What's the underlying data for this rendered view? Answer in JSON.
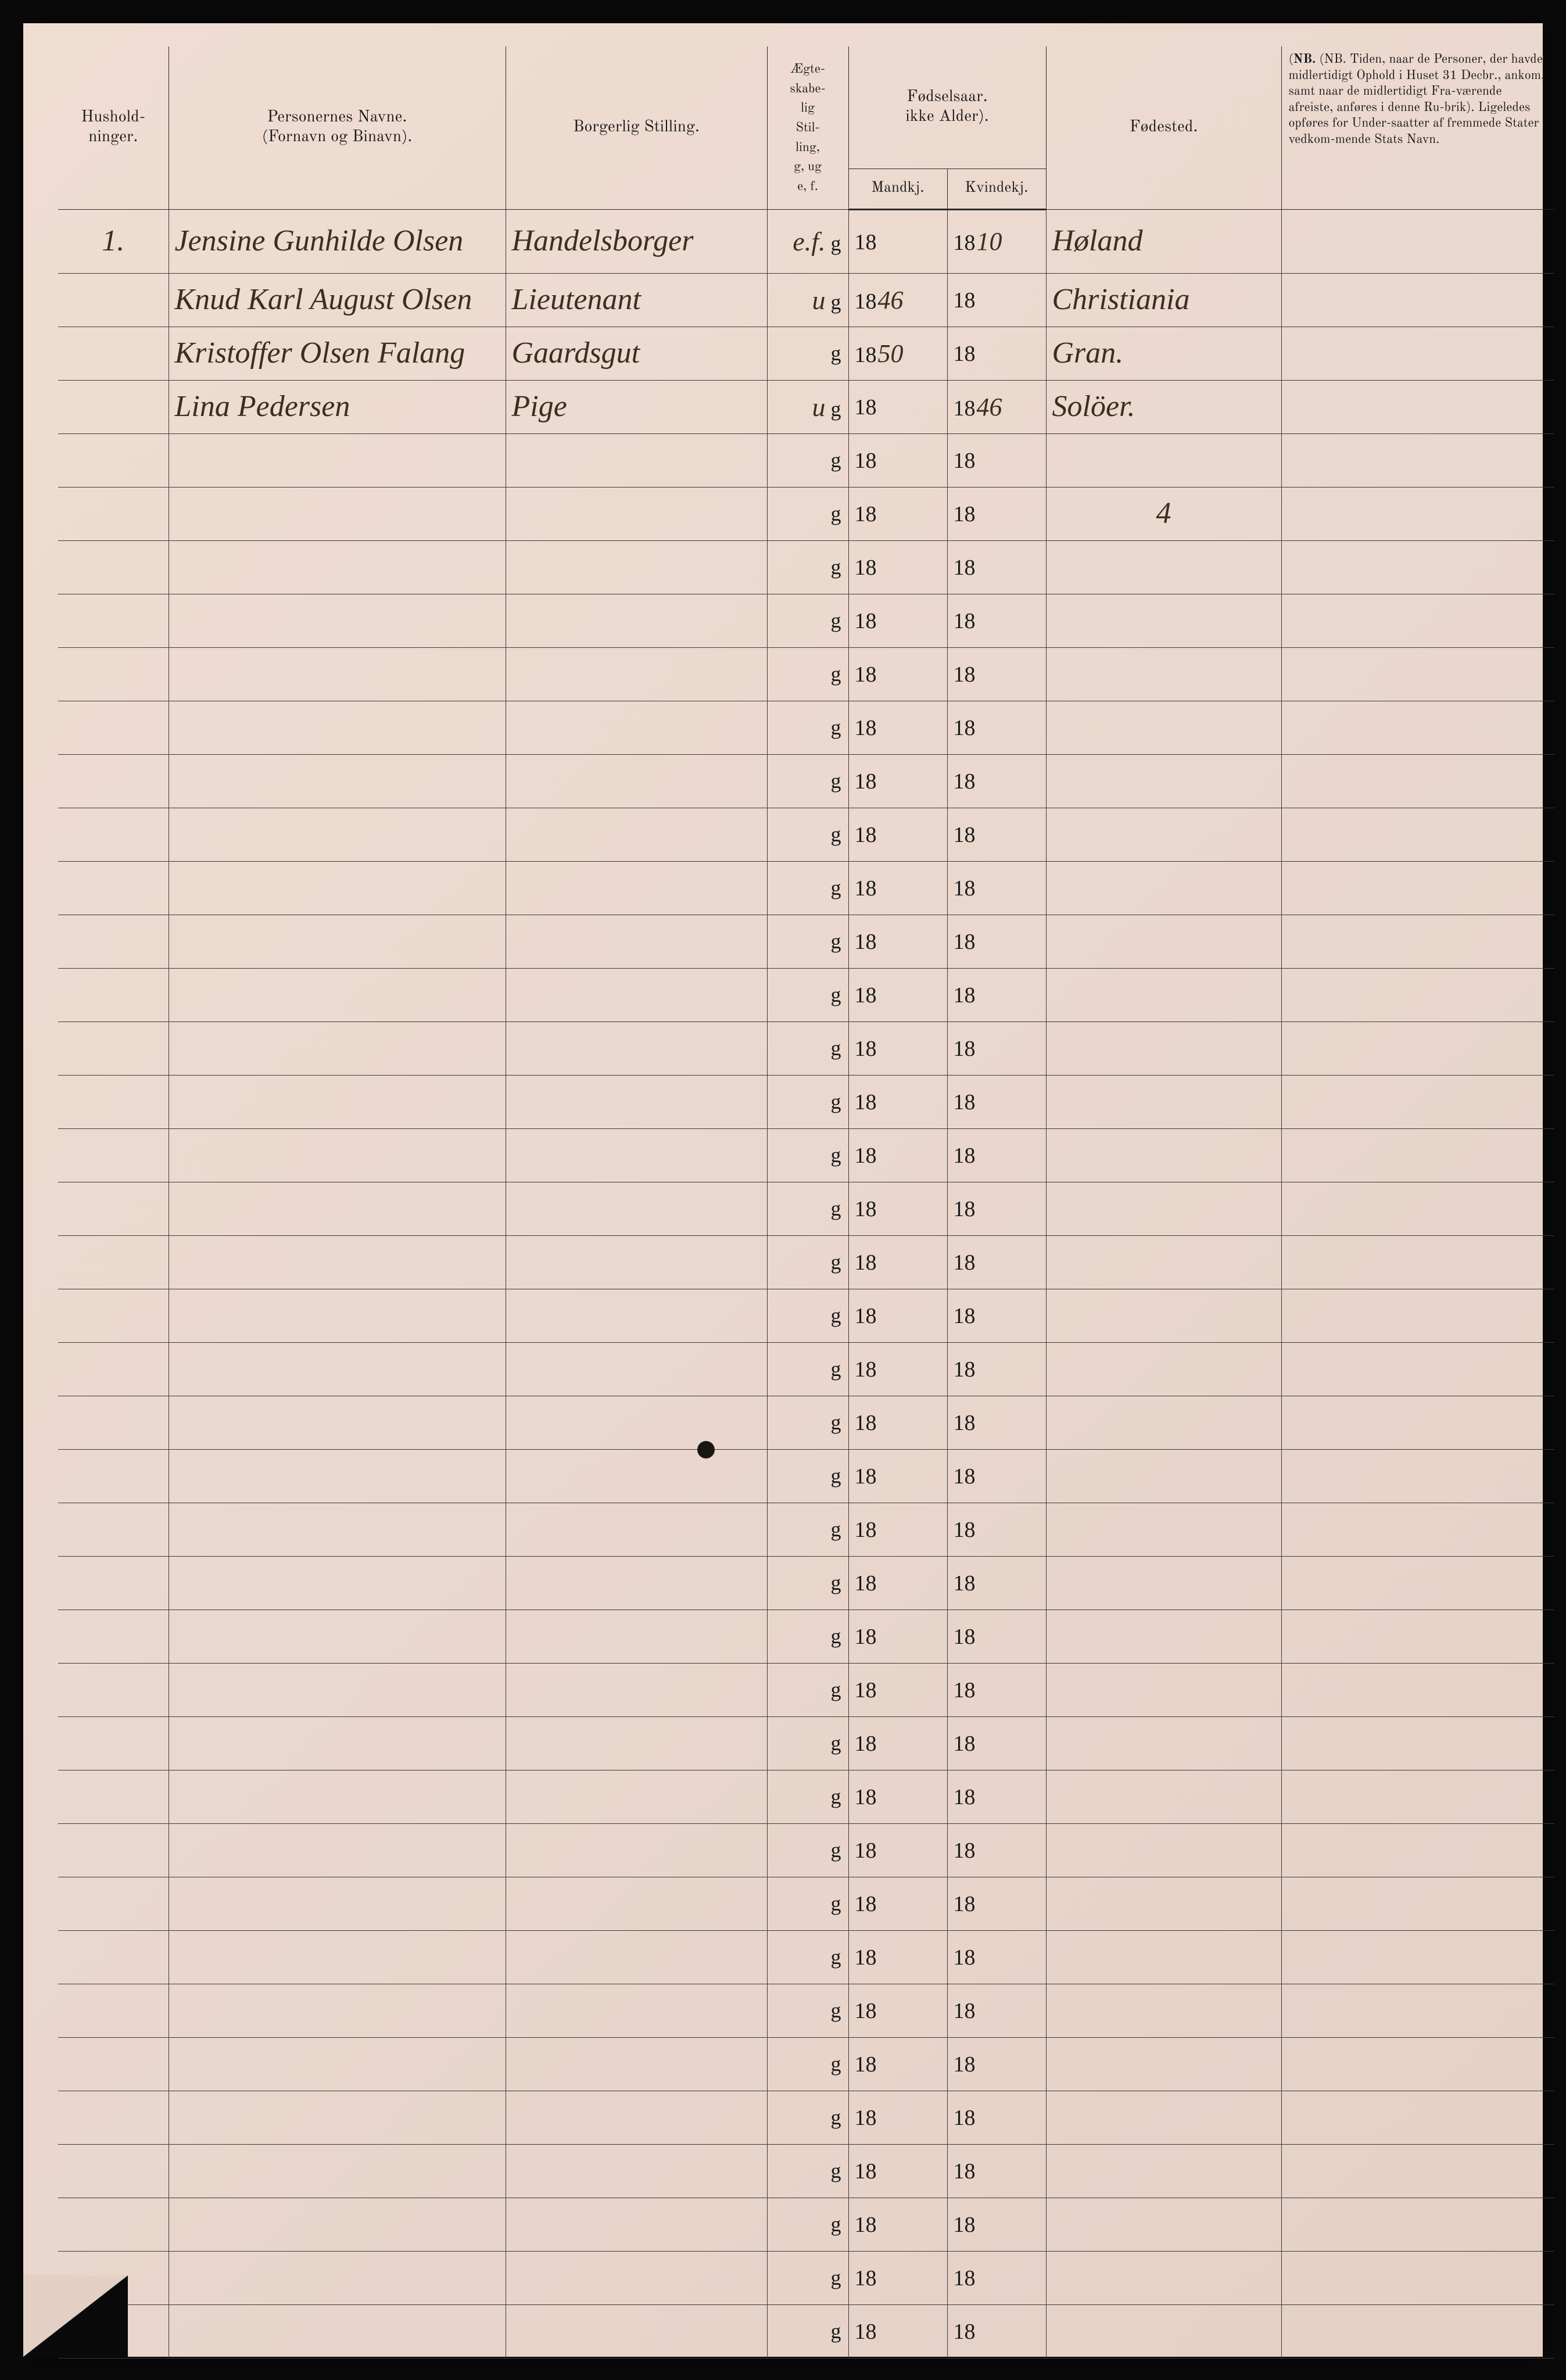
{
  "background_color": "#ebd9d0",
  "line_color": "#3a3a3a",
  "text_color": "#1a1a1a",
  "handwriting_color": "#3a2f1f",
  "header": {
    "col1": "Hushold-\nninger.",
    "col2": "Personernes Navne.\n(Fornavn og Binavn).",
    "col3": "Borgerlig Stilling.",
    "col4": "Ægte-\nskabe-\nlig\nStil-\nling,\ng, ug\ne, f.",
    "col5_top": "Fødselsaar.\nikke Alder).",
    "col5a": "Mandkj.",
    "col5b": "Kvindekj.",
    "col6": "Fødested.",
    "col7_note": "(NB. Tiden, naar de Personer, der havde midlertidigt Ophold i Huset 31 Decbr., ankom, samt naar de midlertidigt Fra-værende afreiste, anføres i denne Ru-brik). Ligeledes opføres for Under-saatter af fremmede Stater vedkom-mende Stats Navn."
  },
  "preprinted_year": "18",
  "rows": [
    {
      "num": "1.",
      "name": "Jensine Gunhilde Olsen",
      "status": "Handelsborger",
      "marital": "e.f.",
      "marital_g": "g",
      "male_year": "",
      "female_year": "10",
      "birthplace": "Høland"
    },
    {
      "num": "",
      "name": "Knud Karl August Olsen",
      "status": "Lieutenant",
      "marital": "u",
      "marital_g": "g",
      "male_year": "46",
      "female_year": "",
      "birthplace": "Christiania"
    },
    {
      "num": "",
      "name": "Kristoffer Olsen Falang",
      "status": "Gaardsgut",
      "marital": "",
      "marital_g": "g",
      "male_year": "50",
      "female_year": "",
      "birthplace": "Gran."
    },
    {
      "num": "",
      "name": "Lina Pedersen",
      "status": "Pige",
      "marital": "u",
      "marital_g": "g",
      "male_year": "",
      "female_year": "46",
      "birthplace": "Solöer."
    },
    {
      "num": "",
      "name": "",
      "status": "",
      "marital": "",
      "marital_g": "g",
      "male_year": "",
      "female_year": "",
      "birthplace": ""
    },
    {
      "num": "",
      "name": "",
      "status": "",
      "marital": "",
      "marital_g": "g",
      "male_year": "",
      "female_year": "",
      "birthplace": "4"
    },
    {
      "num": "",
      "name": "",
      "status": "",
      "marital": "",
      "marital_g": "g",
      "male_year": "",
      "female_year": "",
      "birthplace": ""
    },
    {
      "num": "",
      "name": "",
      "status": "",
      "marital": "",
      "marital_g": "g",
      "male_year": "",
      "female_year": "",
      "birthplace": ""
    },
    {
      "num": "",
      "name": "",
      "status": "",
      "marital": "",
      "marital_g": "g",
      "male_year": "",
      "female_year": "",
      "birthplace": ""
    },
    {
      "num": "",
      "name": "",
      "status": "",
      "marital": "",
      "marital_g": "g",
      "male_year": "",
      "female_year": "",
      "birthplace": ""
    },
    {
      "num": "",
      "name": "",
      "status": "",
      "marital": "",
      "marital_g": "g",
      "male_year": "",
      "female_year": "",
      "birthplace": ""
    },
    {
      "num": "",
      "name": "",
      "status": "",
      "marital": "",
      "marital_g": "g",
      "male_year": "",
      "female_year": "",
      "birthplace": ""
    },
    {
      "num": "",
      "name": "",
      "status": "",
      "marital": "",
      "marital_g": "g",
      "male_year": "",
      "female_year": "",
      "birthplace": ""
    },
    {
      "num": "",
      "name": "",
      "status": "",
      "marital": "",
      "marital_g": "g",
      "male_year": "",
      "female_year": "",
      "birthplace": ""
    },
    {
      "num": "",
      "name": "",
      "status": "",
      "marital": "",
      "marital_g": "g",
      "male_year": "",
      "female_year": "",
      "birthplace": ""
    },
    {
      "num": "",
      "name": "",
      "status": "",
      "marital": "",
      "marital_g": "g",
      "male_year": "",
      "female_year": "",
      "birthplace": ""
    },
    {
      "num": "",
      "name": "",
      "status": "",
      "marital": "",
      "marital_g": "g",
      "male_year": "",
      "female_year": "",
      "birthplace": ""
    },
    {
      "num": "",
      "name": "",
      "status": "",
      "marital": "",
      "marital_g": "g",
      "male_year": "",
      "female_year": "",
      "birthplace": ""
    },
    {
      "num": "",
      "name": "",
      "status": "",
      "marital": "",
      "marital_g": "g",
      "male_year": "",
      "female_year": "",
      "birthplace": ""
    },
    {
      "num": "",
      "name": "",
      "status": "",
      "marital": "",
      "marital_g": "g",
      "male_year": "",
      "female_year": "",
      "birthplace": ""
    },
    {
      "num": "",
      "name": "",
      "status": "",
      "marital": "",
      "marital_g": "g",
      "male_year": "",
      "female_year": "",
      "birthplace": ""
    },
    {
      "num": "",
      "name": "",
      "status": "",
      "marital": "",
      "marital_g": "g",
      "male_year": "",
      "female_year": "",
      "birthplace": ""
    },
    {
      "num": "",
      "name": "",
      "status": "",
      "marital": "",
      "marital_g": "g",
      "male_year": "",
      "female_year": "",
      "birthplace": ""
    },
    {
      "num": "",
      "name": "",
      "status": "",
      "marital": "",
      "marital_g": "g",
      "male_year": "",
      "female_year": "",
      "birthplace": ""
    },
    {
      "num": "",
      "name": "",
      "status": "",
      "marital": "",
      "marital_g": "g",
      "male_year": "",
      "female_year": "",
      "birthplace": ""
    },
    {
      "num": "",
      "name": "",
      "status": "",
      "marital": "",
      "marital_g": "g",
      "male_year": "",
      "female_year": "",
      "birthplace": ""
    },
    {
      "num": "",
      "name": "",
      "status": "",
      "marital": "",
      "marital_g": "g",
      "male_year": "",
      "female_year": "",
      "birthplace": ""
    },
    {
      "num": "",
      "name": "",
      "status": "",
      "marital": "",
      "marital_g": "g",
      "male_year": "",
      "female_year": "",
      "birthplace": ""
    },
    {
      "num": "",
      "name": "",
      "status": "",
      "marital": "",
      "marital_g": "g",
      "male_year": "",
      "female_year": "",
      "birthplace": ""
    },
    {
      "num": "",
      "name": "",
      "status": "",
      "marital": "",
      "marital_g": "g",
      "male_year": "",
      "female_year": "",
      "birthplace": ""
    },
    {
      "num": "",
      "name": "",
      "status": "",
      "marital": "",
      "marital_g": "g",
      "male_year": "",
      "female_year": "",
      "birthplace": ""
    },
    {
      "num": "",
      "name": "",
      "status": "",
      "marital": "",
      "marital_g": "g",
      "male_year": "",
      "female_year": "",
      "birthplace": ""
    },
    {
      "num": "",
      "name": "",
      "status": "",
      "marital": "",
      "marital_g": "g",
      "male_year": "",
      "female_year": "",
      "birthplace": ""
    },
    {
      "num": "",
      "name": "",
      "status": "",
      "marital": "",
      "marital_g": "g",
      "male_year": "",
      "female_year": "",
      "birthplace": ""
    },
    {
      "num": "",
      "name": "",
      "status": "",
      "marital": "",
      "marital_g": "g",
      "male_year": "",
      "female_year": "",
      "birthplace": ""
    },
    {
      "num": "",
      "name": "",
      "status": "",
      "marital": "",
      "marital_g": "g",
      "male_year": "",
      "female_year": "",
      "birthplace": ""
    },
    {
      "num": "",
      "name": "",
      "status": "",
      "marital": "",
      "marital_g": "g",
      "male_year": "",
      "female_year": "",
      "birthplace": ""
    },
    {
      "num": "",
      "name": "",
      "status": "",
      "marital": "",
      "marital_g": "g",
      "male_year": "",
      "female_year": "",
      "birthplace": ""
    },
    {
      "num": "",
      "name": "",
      "status": "",
      "marital": "",
      "marital_g": "g",
      "male_year": "",
      "female_year": "",
      "birthplace": ""
    },
    {
      "num": "",
      "name": "",
      "status": "",
      "marital": "",
      "marital_g": "g",
      "male_year": "",
      "female_year": "",
      "birthplace": ""
    }
  ]
}
